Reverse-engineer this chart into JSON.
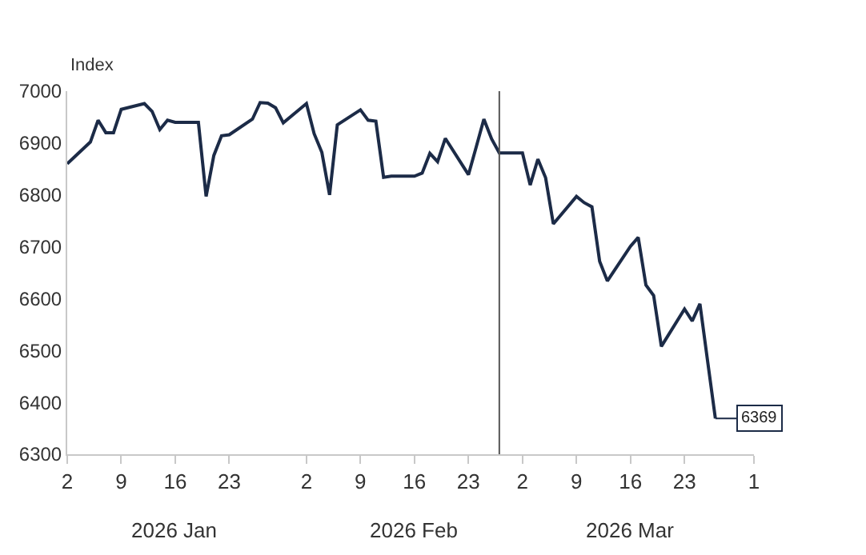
{
  "chart_data": {
    "type": "line",
    "ylabel": "Index",
    "x": [
      "2026-01-02",
      "2026-01-05",
      "2026-01-06",
      "2026-01-07",
      "2026-01-08",
      "2026-01-09",
      "2026-01-12",
      "2026-01-13",
      "2026-01-14",
      "2026-01-15",
      "2026-01-16",
      "2026-01-19",
      "2026-01-20",
      "2026-01-21",
      "2026-01-22",
      "2026-01-23",
      "2026-01-26",
      "2026-01-27",
      "2026-01-28",
      "2026-01-29",
      "2026-01-30",
      "2026-02-02",
      "2026-02-03",
      "2026-02-04",
      "2026-02-05",
      "2026-02-06",
      "2026-02-09",
      "2026-02-10",
      "2026-02-11",
      "2026-02-12",
      "2026-02-13",
      "2026-02-16",
      "2026-02-17",
      "2026-02-18",
      "2026-02-19",
      "2026-02-20",
      "2026-02-23",
      "2026-02-24",
      "2026-02-25",
      "2026-02-26",
      "2026-02-27",
      "2026-03-02",
      "2026-03-03",
      "2026-03-04",
      "2026-03-05",
      "2026-03-06",
      "2026-03-09",
      "2026-03-10",
      "2026-03-11",
      "2026-03-12",
      "2026-03-13",
      "2026-03-16",
      "2026-03-17",
      "2026-03-18",
      "2026-03-19",
      "2026-03-20",
      "2026-03-23",
      "2026-03-24",
      "2026-03-25",
      "2026-03-26",
      "2026-03-27"
    ],
    "series": [
      {
        "color": "#1c2b47",
        "values": [
          6860,
          6902,
          6944,
          6920,
          6920,
          6965,
          6976,
          6961,
          6926,
          6944,
          6940,
          6940,
          6797,
          6876,
          6914,
          6916,
          6946,
          6978,
          6977,
          6968,
          6939,
          6976,
          6918,
          6882,
          6800,
          6935,
          6964,
          6944,
          6942,
          6834,
          6836,
          6836,
          6842,
          6880,
          6864,
          6909,
          6839,
          6892,
          6946,
          6908,
          6881,
          6881,
          6819,
          6869,
          6833,
          6744,
          6797,
          6785,
          6777,
          6672,
          6634,
          6701,
          6718,
          6626,
          6606,
          6508,
          6580,
          6557,
          6590,
          6479,
          6369
        ]
      }
    ],
    "xlim": [
      "2026-01-02",
      "2026-04-01"
    ],
    "xticks": [
      {
        "value": "2026-01-02",
        "label": "2"
      },
      {
        "value": "2026-01-09",
        "label": "9"
      },
      {
        "value": "2026-01-16",
        "label": "16"
      },
      {
        "value": "2026-01-23",
        "label": "23"
      },
      {
        "value": "2026-02-02",
        "label": "2"
      },
      {
        "value": "2026-02-09",
        "label": "9"
      },
      {
        "value": "2026-02-16",
        "label": "16"
      },
      {
        "value": "2026-02-23",
        "label": "23"
      },
      {
        "value": "2026-03-02",
        "label": "2"
      },
      {
        "value": "2026-03-09",
        "label": "9"
      },
      {
        "value": "2026-03-16",
        "label": "16"
      },
      {
        "value": "2026-03-23",
        "label": "23"
      },
      {
        "value": "2026-04-01",
        "label": "1"
      }
    ],
    "ylim": [
      6300,
      7000
    ],
    "yticks": [
      6300,
      6400,
      6500,
      6600,
      6700,
      6800,
      6900,
      7000
    ],
    "ref_lines": [
      {
        "axis": "x",
        "value": "2026-02-27",
        "color": "#555555"
      }
    ],
    "annotations": [
      "2026 Jan",
      "2026 Feb",
      "2026 Mar",
      {
        "text": "6369",
        "x": "2026-03-27",
        "y": 6369
      }
    ],
    "marker": "none",
    "line_style": "solid"
  }
}
